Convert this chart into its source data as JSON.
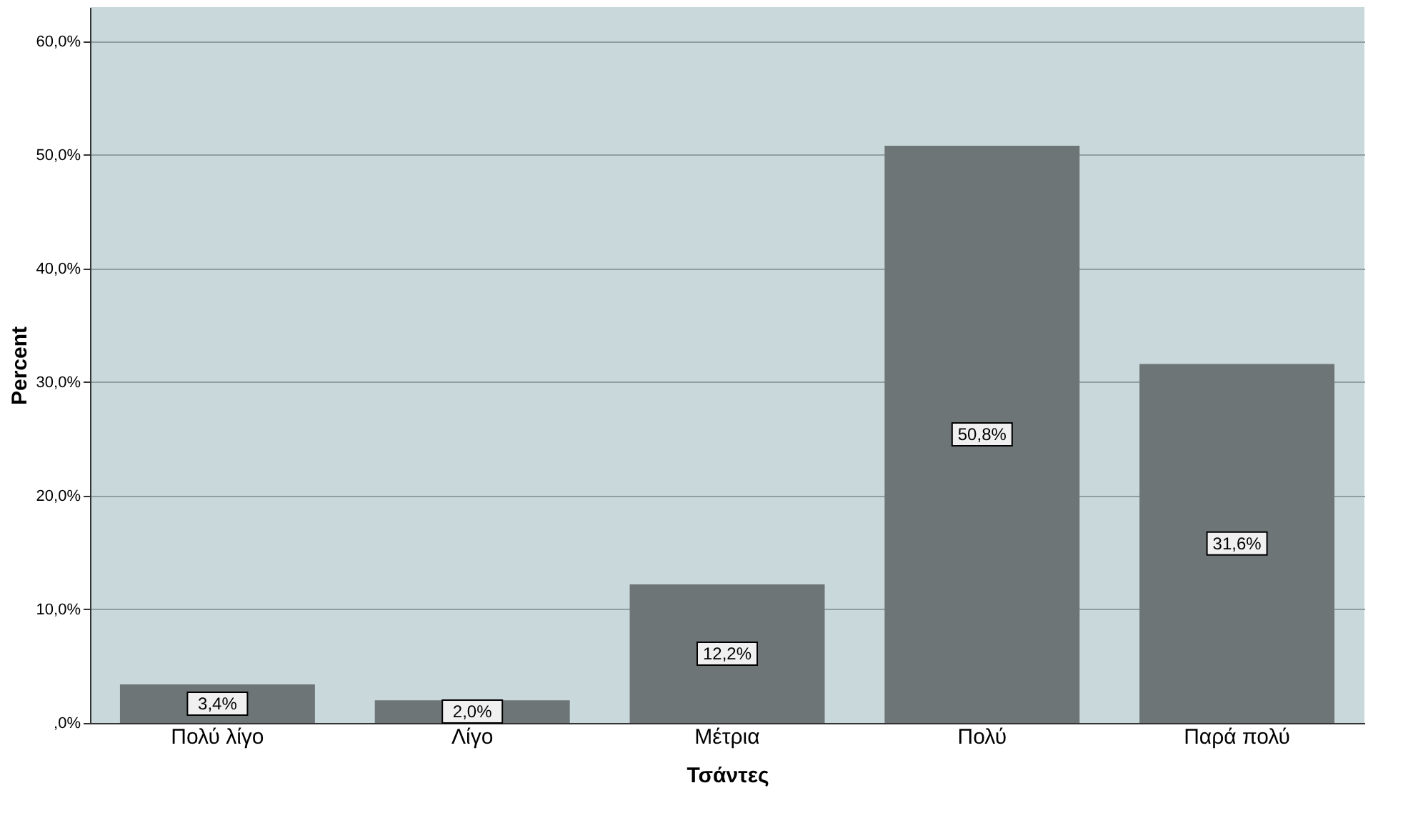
{
  "chart_data": {
    "type": "bar",
    "xlabel": "Τσάντες",
    "ylabel": "Percent",
    "categories": [
      "Πολύ λίγο",
      "Λίγο",
      "Μέτρια",
      "Πολύ",
      "Παρά πολύ"
    ],
    "values": [
      3.4,
      2.0,
      12.2,
      50.8,
      31.6
    ],
    "value_labels": [
      "3,4%",
      "2,0%",
      "12,2%",
      "50,8%",
      "31,6%"
    ],
    "color": "#6e7577",
    "ylim": [
      0,
      63
    ],
    "yticks": [
      {
        "value": 0,
        "label": ",0%"
      },
      {
        "value": 10,
        "label": "10,0%"
      },
      {
        "value": 20,
        "label": "20,0%"
      },
      {
        "value": 30,
        "label": "30,0%"
      },
      {
        "value": 40,
        "label": "40,0%"
      },
      {
        "value": 50,
        "label": "50,0%"
      },
      {
        "value": 60,
        "label": "60,0%"
      }
    ],
    "grid": "y"
  }
}
